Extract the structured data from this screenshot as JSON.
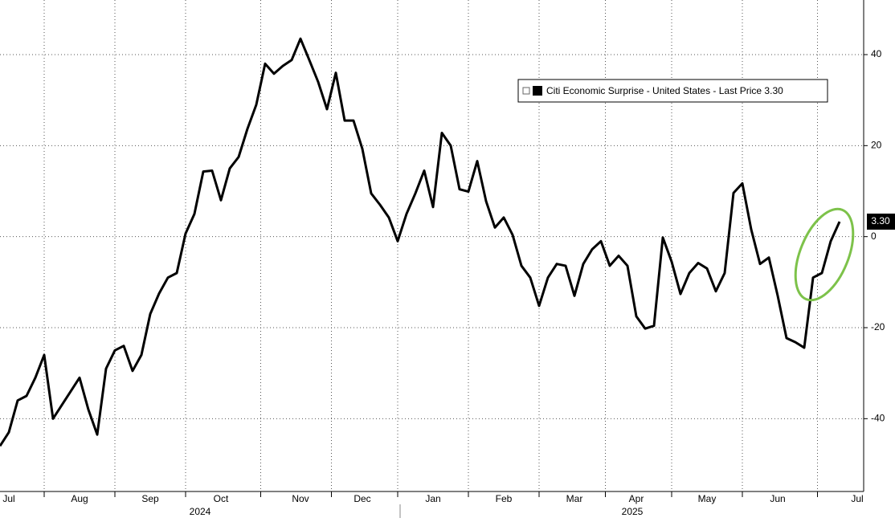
{
  "chart_data": {
    "type": "line",
    "categories": [
      null,
      "Jul",
      null,
      null,
      null,
      null,
      null,
      null,
      null,
      "Aug",
      null,
      null,
      null,
      null,
      null,
      null,
      null,
      "Sep",
      null,
      null,
      null,
      null,
      null,
      null,
      null,
      "Oct",
      null,
      null,
      null,
      null,
      null,
      null,
      null,
      null,
      "Nov",
      null,
      null,
      null,
      null,
      null,
      null,
      "Dec",
      null,
      null,
      null,
      null,
      null,
      null,
      null,
      "Jan",
      null,
      null,
      null,
      null,
      null,
      null,
      null,
      "Feb",
      null,
      null,
      null,
      null,
      null,
      null,
      null,
      "Mar",
      null,
      null,
      null,
      null,
      null,
      null,
      "Apr",
      null,
      null,
      null,
      null,
      null,
      null,
      null,
      "May",
      null,
      null,
      null,
      null,
      null,
      null,
      null,
      "Jun",
      null,
      null,
      null,
      null,
      null,
      null,
      null,
      null,
      "Jul"
    ],
    "year_labels": [
      "2024",
      "2025"
    ],
    "series": [
      {
        "name": "Citi Economic Surprise - United States - Last Price 3.30",
        "color": "#000000",
        "values": [
          -46,
          -43,
          -36,
          -35,
          -31,
          -26,
          -40,
          -37,
          -34,
          -31,
          -38,
          -43.5,
          -29,
          -25,
          -24,
          -29.5,
          -26,
          -17,
          -12.5,
          -9,
          -8,
          0.7,
          5,
          14.3,
          14.5,
          8,
          15,
          17.5,
          23.7,
          29,
          38,
          35.8,
          37.5,
          38.8,
          43.5,
          38.8,
          34,
          28,
          36,
          25.5,
          25.5,
          19.3,
          9.5,
          7,
          4.2,
          -1,
          5,
          9.5,
          14.5,
          6.5,
          22.8,
          20,
          10.4,
          9.9,
          16.6,
          7.8,
          2,
          4.2,
          0.4,
          -6.4,
          -9,
          -15.2,
          -9,
          -6,
          -6.4,
          -13,
          -6,
          -2.8,
          -1,
          -6.4,
          -4.2,
          -6.4,
          -17.5,
          -20.2,
          -19.6,
          -0.2,
          -5.5,
          -12.6,
          -8,
          -5.8,
          -7,
          -12,
          -8,
          9.6,
          11.7,
          1.6,
          -6,
          -4.6,
          -13,
          -22.3,
          -23.2,
          -24.4,
          -9,
          -8,
          -1,
          3.3,
          null,
          null
        ],
        "value_labels": [
          null,
          null,
          null,
          null,
          null,
          null,
          null,
          null,
          null,
          null,
          null,
          null,
          null,
          null,
          null,
          null,
          null,
          null,
          null,
          null,
          null,
          null,
          null,
          null,
          null,
          null,
          null,
          null,
          null,
          null,
          null,
          null,
          null,
          null,
          null,
          null,
          null,
          null,
          null,
          null,
          null,
          null,
          null,
          null,
          null,
          null,
          null,
          null,
          null,
          null,
          null,
          null,
          null,
          null,
          null,
          null,
          null,
          null,
          null,
          null,
          null,
          null,
          null,
          null,
          null,
          null,
          null,
          null,
          null,
          null,
          null,
          null,
          null,
          null,
          null,
          null,
          null,
          null,
          null,
          null,
          null,
          null,
          null,
          null,
          null,
          null,
          null,
          null,
          null,
          null,
          null,
          null,
          null,
          null,
          null,
          "3.30",
          null,
          null
        ]
      }
    ],
    "ylim": [
      -56,
      52
    ],
    "yticks": [
      -40,
      -20,
      0,
      20,
      40
    ],
    "grid": true
  }
}
